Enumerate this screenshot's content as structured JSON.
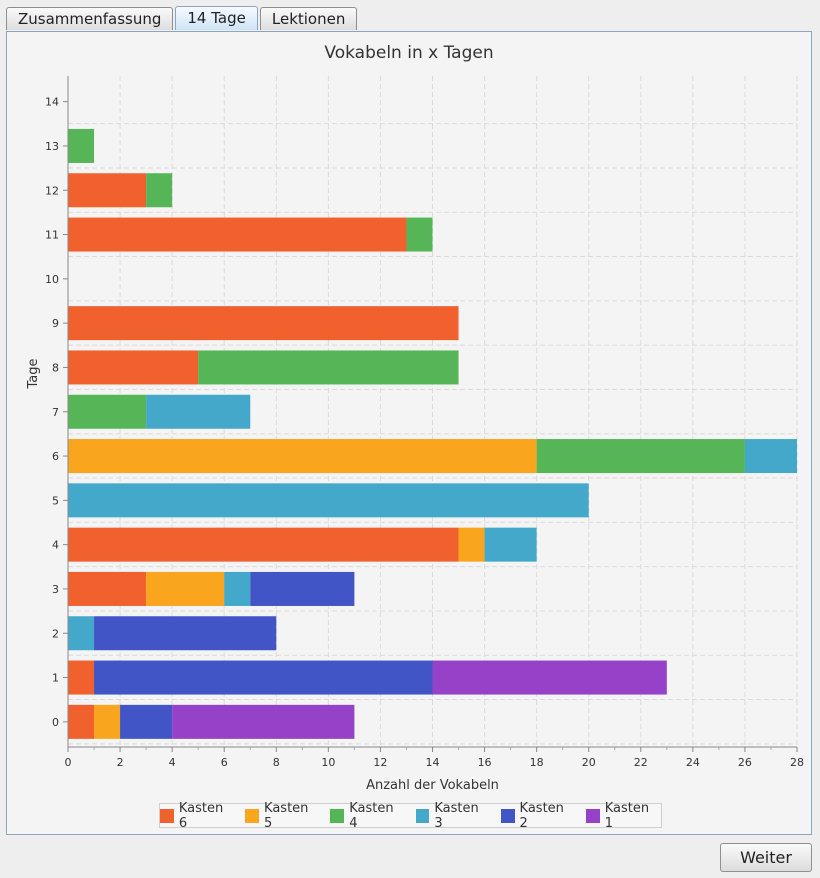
{
  "tabs": [
    "Zusammenfassung",
    "14 Tage",
    "Lektionen"
  ],
  "button": {
    "weiter": "Weiter"
  },
  "chart_data": {
    "type": "bar",
    "orientation": "horizontal",
    "stacked": true,
    "title": "Vokabeln in x Tagen",
    "xlabel": "Anzahl der Vokabeln",
    "ylabel": "Tage",
    "xlim": [
      0,
      28
    ],
    "xticks": [
      0,
      2,
      4,
      6,
      8,
      10,
      12,
      14,
      16,
      18,
      20,
      22,
      24,
      26,
      28
    ],
    "categories": [
      "0",
      "1",
      "2",
      "3",
      "4",
      "5",
      "6",
      "7",
      "8",
      "9",
      "10",
      "11",
      "12",
      "13",
      "14"
    ],
    "series": [
      {
        "name": "Kasten 6",
        "color": "#f0612e",
        "values": [
          1,
          1,
          0,
          3,
          15,
          0,
          0,
          0,
          5,
          15,
          0,
          13,
          3,
          0,
          0
        ]
      },
      {
        "name": "Kasten 5",
        "color": "#f9a51e",
        "values": [
          1,
          0,
          0,
          3,
          1,
          0,
          18,
          0,
          0,
          0,
          0,
          0,
          0,
          0,
          0
        ]
      },
      {
        "name": "Kasten 4",
        "color": "#56b556",
        "values": [
          0,
          0,
          0,
          0,
          0,
          0,
          8,
          3,
          10,
          0,
          0,
          1,
          1,
          1,
          0
        ]
      },
      {
        "name": "Kasten 3",
        "color": "#43a8c9",
        "values": [
          0,
          0,
          1,
          1,
          2,
          20,
          2,
          4,
          0,
          0,
          0,
          0,
          0,
          0,
          0
        ]
      },
      {
        "name": "Kasten 2",
        "color": "#4155c6",
        "values": [
          2,
          13,
          7,
          4,
          0,
          0,
          0,
          0,
          0,
          0,
          0,
          0,
          0,
          0,
          0
        ]
      },
      {
        "name": "Kasten 1",
        "color": "#9541c8",
        "values": [
          7,
          9,
          0,
          0,
          0,
          0,
          0,
          0,
          0,
          0,
          0,
          0,
          0,
          0,
          0
        ]
      }
    ],
    "legend_order": [
      0,
      1,
      2,
      3,
      4,
      5
    ],
    "grid": true,
    "legend": "bottom-center"
  }
}
